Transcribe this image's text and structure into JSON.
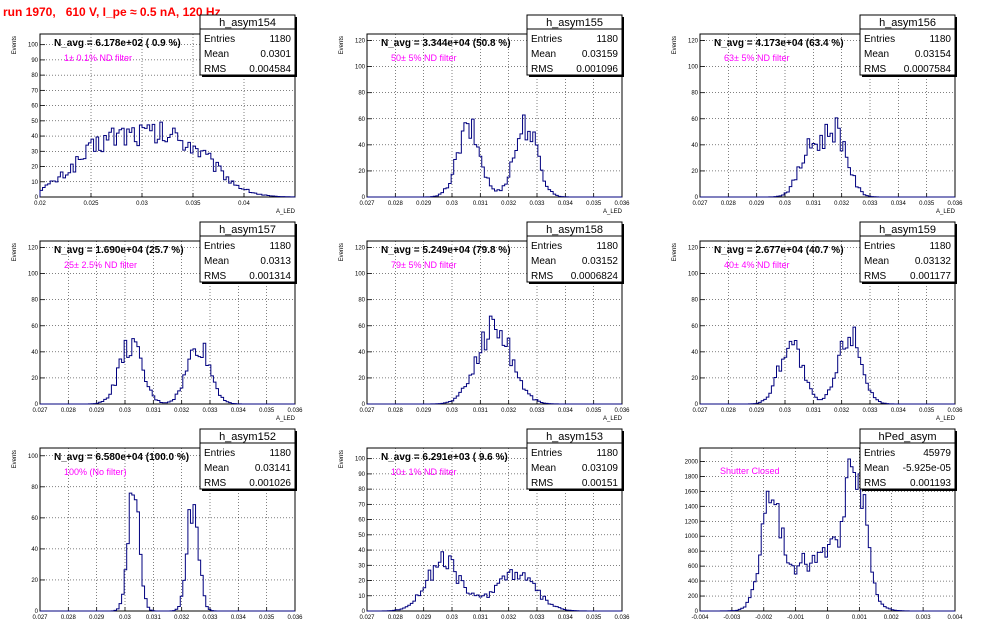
{
  "page": {
    "title": "run 1970,   610 V, I_pe ≈ 0.5 nA, 120 Hz"
  },
  "colors": {
    "title": "#ff0000",
    "hist": "#00007f",
    "filter_text": "#ff00ff"
  },
  "stat_labels": {
    "entries": "Entries",
    "mean": "Mean",
    "rms": "RMS"
  },
  "chart_data": [
    {
      "type": "bar",
      "name": "h_asym154",
      "xlabel": "A_LED",
      "ylabel": "Events",
      "xlim": [
        0.02,
        0.045
      ],
      "ylim": [
        0,
        107
      ],
      "xticks": [
        0.02,
        0.025,
        0.03,
        0.035,
        0.04
      ],
      "xtick_labels": [
        "0.02",
        "0.025",
        "0.03",
        "0.035",
        "0.04"
      ],
      "yticks": [
        0,
        10,
        20,
        30,
        40,
        50,
        60,
        70,
        80,
        90,
        100
      ],
      "ytick_labels": [
        "0",
        "10",
        "20",
        "30",
        "40",
        "50",
        "60",
        "70",
        "80",
        "90",
        "100"
      ],
      "n_avg": "N_avg = 6.178e+02 ( 0.9 %)",
      "filter": "1± 0.1% ND filter",
      "stats": {
        "entries": "1180",
        "mean": "0.0301",
        "rms": "0.004584"
      },
      "peaks": [
        [
          0.0265,
          0.0035,
          22
        ],
        [
          0.0295,
          0.004,
          20
        ],
        [
          0.0345,
          0.003,
          25
        ]
      ]
    },
    {
      "type": "bar",
      "name": "h_asym155",
      "xlabel": "A_LED",
      "ylabel": "Events",
      "xlim": [
        0.027,
        0.036
      ],
      "ylim": [
        0,
        125
      ],
      "xticks": [
        0.027,
        0.028,
        0.029,
        0.03,
        0.031,
        0.032,
        0.033,
        0.034,
        0.035,
        0.036
      ],
      "xtick_labels": [
        "0.027",
        "0.028",
        "0.029",
        "0.03",
        "0.031",
        "0.032",
        "0.033",
        "0.034",
        "0.035",
        "0.036"
      ],
      "yticks": [
        0,
        20,
        40,
        60,
        80,
        100,
        120
      ],
      "ytick_labels": [
        "0",
        "20",
        "40",
        "60",
        "80",
        "100",
        "120"
      ],
      "n_avg": "N_avg = 3.344e+04 (50.8 %)",
      "filter": "50± 5% ND filter",
      "stats": {
        "entries": "1180",
        "mean": "0.03159",
        "rms": "0.001096"
      },
      "peaks": [
        [
          0.0306,
          0.0004,
          52
        ],
        [
          0.0326,
          0.0004,
          55
        ]
      ]
    },
    {
      "type": "bar",
      "name": "h_asym156",
      "xlabel": "A_LED",
      "ylabel": "Events",
      "xlim": [
        0.027,
        0.036
      ],
      "ylim": [
        0,
        125
      ],
      "xticks": [
        0.027,
        0.028,
        0.029,
        0.03,
        0.031,
        0.032,
        0.033,
        0.034,
        0.035,
        0.036
      ],
      "xtick_labels": [
        "0.027",
        "0.028",
        "0.029",
        "0.03",
        "0.031",
        "0.032",
        "0.033",
        "0.034",
        "0.035",
        "0.036"
      ],
      "yticks": [
        0,
        20,
        40,
        60,
        80,
        100,
        120
      ],
      "ytick_labels": [
        "0",
        "20",
        "40",
        "60",
        "80",
        "100",
        "120"
      ],
      "n_avg": "N_avg = 4.173e+04 (63.4 %)",
      "filter": "63± 5% ND filter",
      "stats": {
        "entries": "1180",
        "mean": "0.03154",
        "rms": "0.0007584"
      },
      "peaks": [
        [
          0.0309,
          0.0004,
          35
        ],
        [
          0.0318,
          0.0004,
          50
        ]
      ]
    },
    {
      "type": "bar",
      "name": "h_asym157",
      "xlabel": "A_LED",
      "ylabel": "Events",
      "xlim": [
        0.027,
        0.036
      ],
      "ylim": [
        0,
        125
      ],
      "xticks": [
        0.027,
        0.028,
        0.029,
        0.03,
        0.031,
        0.032,
        0.033,
        0.034,
        0.035,
        0.036
      ],
      "xtick_labels": [
        "0.027",
        "0.028",
        "0.029",
        "0.03",
        "0.031",
        "0.032",
        "0.033",
        "0.034",
        "0.035",
        "0.036"
      ],
      "yticks": [
        0,
        20,
        40,
        60,
        80,
        100,
        120
      ],
      "ytick_labels": [
        "0",
        "20",
        "40",
        "60",
        "80",
        "100",
        "120"
      ],
      "n_avg": "N_avg = 1.690e+04 (25.7 %)",
      "filter": "25± 2.5% ND filter",
      "stats": {
        "entries": "1180",
        "mean": "0.0313",
        "rms": "0.001314"
      },
      "peaks": [
        [
          0.0302,
          0.0004,
          45
        ],
        [
          0.0326,
          0.0004,
          45
        ]
      ]
    },
    {
      "type": "bar",
      "name": "h_asym158",
      "xlabel": "A_LED",
      "ylabel": "Events",
      "xlim": [
        0.027,
        0.036
      ],
      "ylim": [
        0,
        125
      ],
      "xticks": [
        0.027,
        0.028,
        0.029,
        0.03,
        0.031,
        0.032,
        0.033,
        0.034,
        0.035,
        0.036
      ],
      "xtick_labels": [
        "0.027",
        "0.028",
        "0.029",
        "0.03",
        "0.031",
        "0.032",
        "0.033",
        "0.034",
        "0.035",
        "0.036"
      ],
      "yticks": [
        0,
        20,
        40,
        60,
        80,
        100,
        120
      ],
      "ytick_labels": [
        "0",
        "20",
        "40",
        "60",
        "80",
        "100",
        "120"
      ],
      "n_avg": "N_avg = 5.249e+04 (79.8 %)",
      "filter": "79± 5% ND filter",
      "stats": {
        "entries": "1180",
        "mean": "0.03152",
        "rms": "0.0006824"
      },
      "peaks": [
        [
          0.0315,
          0.0006,
          60
        ]
      ]
    },
    {
      "type": "bar",
      "name": "h_asym159",
      "xlabel": "A_LED",
      "ylabel": "Events",
      "xlim": [
        0.027,
        0.036
      ],
      "ylim": [
        0,
        125
      ],
      "xticks": [
        0.027,
        0.028,
        0.029,
        0.03,
        0.031,
        0.032,
        0.033,
        0.034,
        0.035,
        0.036
      ],
      "xtick_labels": [
        "0.027",
        "0.028",
        "0.029",
        "0.03",
        "0.031",
        "0.032",
        "0.033",
        "0.034",
        "0.035",
        "0.036"
      ],
      "yticks": [
        0,
        20,
        40,
        60,
        80,
        100,
        120
      ],
      "ytick_labels": [
        "0",
        "20",
        "40",
        "60",
        "80",
        "100",
        "120"
      ],
      "n_avg": "N_avg = 2.677e+04 (40.7 %)",
      "filter": "40± 4% ND filter",
      "stats": {
        "entries": "1180",
        "mean": "0.03132",
        "rms": "0.001177"
      },
      "peaks": [
        [
          0.0302,
          0.0004,
          48
        ],
        [
          0.0323,
          0.0004,
          55
        ]
      ]
    },
    {
      "type": "bar",
      "name": "h_asym152",
      "xlabel": "A_LED",
      "ylabel": "Events",
      "xlim": [
        0.027,
        0.036
      ],
      "ylim": [
        0,
        105
      ],
      "xticks": [
        0.027,
        0.028,
        0.029,
        0.03,
        0.031,
        0.032,
        0.033,
        0.034,
        0.035,
        0.036
      ],
      "xtick_labels": [
        "0.027",
        "0.028",
        "0.029",
        "0.03",
        "0.031",
        "0.032",
        "0.033",
        "0.034",
        "0.035",
        "0.036"
      ],
      "yticks": [
        0,
        20,
        40,
        60,
        80,
        100
      ],
      "ytick_labels": [
        "0",
        "20",
        "40",
        "60",
        "80",
        "100"
      ],
      "n_avg": "N_avg = 6.580e+04 (100.0 %)",
      "filter": "100% (No filter)",
      "stats": {
        "entries": "1180",
        "mean": "0.03141",
        "rms": "0.001026"
      },
      "peaks": [
        [
          0.0303,
          0.0002,
          78
        ],
        [
          0.0324,
          0.0002,
          72
        ]
      ]
    },
    {
      "type": "bar",
      "name": "h_asym153",
      "xlabel": "A_LED",
      "ylabel": "Events",
      "xlim": [
        0.027,
        0.036
      ],
      "ylim": [
        0,
        107
      ],
      "xticks": [
        0.027,
        0.028,
        0.029,
        0.03,
        0.031,
        0.032,
        0.033,
        0.034,
        0.035,
        0.036
      ],
      "xtick_labels": [
        "0.027",
        "0.028",
        "0.029",
        "0.03",
        "0.031",
        "0.032",
        "0.033",
        "0.034",
        "0.035",
        "0.036"
      ],
      "yticks": [
        0,
        10,
        20,
        30,
        40,
        50,
        60,
        70,
        80,
        90,
        100
      ],
      "ytick_labels": [
        "0",
        "10",
        "20",
        "30",
        "40",
        "50",
        "60",
        "70",
        "80",
        "90",
        "100"
      ],
      "n_avg": "N_avg = 6.291e+03 ( 9.6 %)",
      "filter": "10± 1% ND filter",
      "stats": {
        "entries": "1180",
        "mean": "0.03109",
        "rms": "0.00151"
      },
      "peaks": [
        [
          0.0297,
          0.0006,
          32
        ],
        [
          0.0322,
          0.0007,
          25
        ]
      ]
    },
    {
      "type": "bar",
      "name": "hPed_asym",
      "xlabel": "A_LED",
      "ylabel": "",
      "xlim": [
        -0.004,
        0.004
      ],
      "ylim": [
        0,
        2180
      ],
      "xticks": [
        -0.004,
        -0.003,
        -0.002,
        -0.001,
        0,
        0.001,
        0.002,
        0.003,
        0.004
      ],
      "xtick_labels": [
        "-0.004",
        "-0.003",
        "-0.002",
        "-0.001",
        "0",
        "0.001",
        "0.002",
        "0.003",
        "0.004"
      ],
      "yticks": [
        0,
        200,
        400,
        600,
        800,
        1000,
        1200,
        1400,
        1600,
        1800,
        2000
      ],
      "ytick_labels": [
        "0",
        "200",
        "400",
        "600",
        "800",
        "1000",
        "1200",
        "1400",
        "1600",
        "1800",
        "2000"
      ],
      "n_avg": "",
      "filter": "Shutter Closed",
      "stats": {
        "entries": "45979",
        "mean": "-5.925e-05",
        "rms": "0.001193"
      },
      "peaks": [
        [
          -0.0018,
          0.0003,
          1300
        ],
        [
          -0.0008,
          0.0007,
          550
        ],
        [
          0.0009,
          0.0003,
          1650
        ],
        [
          0.0004,
          0.0006,
          600
        ]
      ]
    }
  ]
}
